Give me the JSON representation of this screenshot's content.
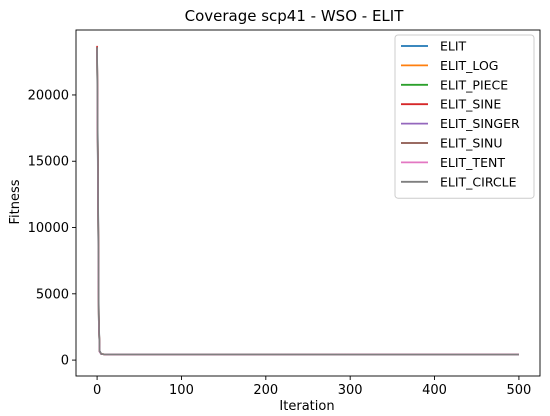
{
  "chart_data": {
    "type": "line",
    "title": "Coverage scp41 - WSO - ELIT",
    "xlabel": "Iteration",
    "ylabel": "Fitness",
    "xlim": [
      -25,
      525
    ],
    "ylim": [
      -1200,
      24900
    ],
    "xticks": [
      0,
      100,
      200,
      300,
      400,
      500
    ],
    "yticks": [
      0,
      5000,
      10000,
      15000,
      20000
    ],
    "grid": false,
    "legend_position": "top-right",
    "series": [
      {
        "name": "ELIT",
        "color": "#1f77b4",
        "points": [
          [
            0,
            23600
          ],
          [
            1,
            15000
          ],
          [
            2,
            3500
          ],
          [
            3,
            700
          ],
          [
            5,
            460
          ],
          [
            10,
            430
          ],
          [
            100,
            425
          ],
          [
            300,
            420
          ],
          [
            500,
            415
          ]
        ]
      },
      {
        "name": "ELIT_LOG",
        "color": "#ff7f0e",
        "points": [
          [
            0,
            23500
          ],
          [
            1,
            14000
          ],
          [
            2,
            3200
          ],
          [
            3,
            650
          ],
          [
            5,
            455
          ],
          [
            10,
            430
          ],
          [
            100,
            425
          ],
          [
            300,
            420
          ],
          [
            500,
            415
          ]
        ]
      },
      {
        "name": "ELIT_PIECE",
        "color": "#2ca02c",
        "points": [
          [
            0,
            23400
          ],
          [
            1,
            13500
          ],
          [
            2,
            3000
          ],
          [
            3,
            640
          ],
          [
            5,
            450
          ],
          [
            10,
            428
          ],
          [
            100,
            424
          ],
          [
            300,
            419
          ],
          [
            500,
            414
          ]
        ]
      },
      {
        "name": "ELIT_SINE",
        "color": "#d62728",
        "points": [
          [
            0,
            23700
          ],
          [
            1,
            14500
          ],
          [
            2,
            3300
          ],
          [
            3,
            660
          ],
          [
            5,
            455
          ],
          [
            10,
            430
          ],
          [
            100,
            425
          ],
          [
            300,
            420
          ],
          [
            500,
            415
          ]
        ]
      },
      {
        "name": "ELIT_SINGER",
        "color": "#9467bd",
        "points": [
          [
            0,
            23300
          ],
          [
            1,
            13000
          ],
          [
            2,
            2900
          ],
          [
            3,
            620
          ],
          [
            5,
            450
          ],
          [
            10,
            428
          ],
          [
            100,
            424
          ],
          [
            300,
            419
          ],
          [
            500,
            414
          ]
        ]
      },
      {
        "name": "ELIT_SINU",
        "color": "#8c564b",
        "points": [
          [
            0,
            23600
          ],
          [
            1,
            14200
          ],
          [
            2,
            3100
          ],
          [
            3,
            640
          ],
          [
            5,
            452
          ],
          [
            10,
            429
          ],
          [
            100,
            424
          ],
          [
            300,
            420
          ],
          [
            500,
            415
          ]
        ]
      },
      {
        "name": "ELIT_TENT",
        "color": "#e377c2",
        "points": [
          [
            0,
            23500
          ],
          [
            1,
            13800
          ],
          [
            2,
            3000
          ],
          [
            3,
            630
          ],
          [
            5,
            450
          ],
          [
            10,
            428
          ],
          [
            100,
            424
          ],
          [
            300,
            419
          ],
          [
            500,
            414
          ]
        ]
      },
      {
        "name": "ELIT_CIRCLE",
        "color": "#7f7f7f",
        "points": [
          [
            0,
            23600
          ],
          [
            1,
            14800
          ],
          [
            2,
            3400
          ],
          [
            3,
            680
          ],
          [
            5,
            458
          ],
          [
            10,
            430
          ],
          [
            100,
            425
          ],
          [
            300,
            420
          ],
          [
            500,
            415
          ]
        ]
      }
    ]
  }
}
